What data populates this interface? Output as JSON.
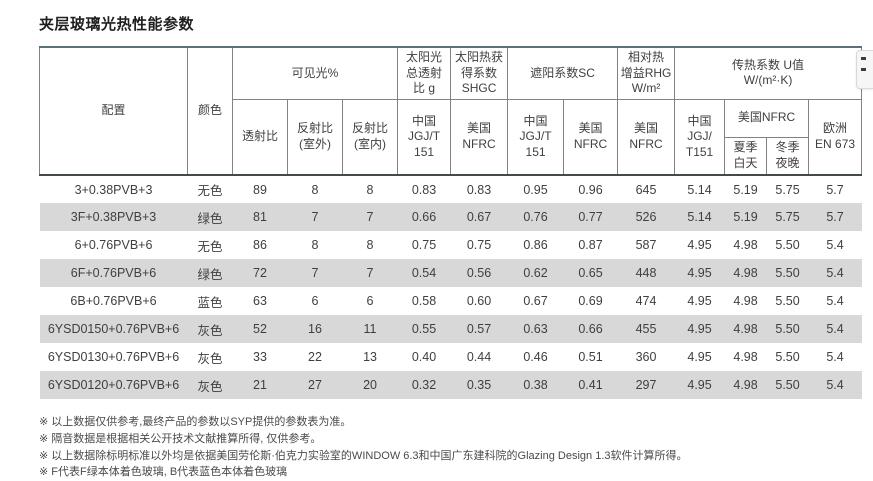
{
  "page": {
    "title": "夹层玻璃光热性能参数"
  },
  "table": {
    "header": {
      "config": "配置",
      "color": "颜色",
      "visible_light": "可见光%",
      "solar_g": "太阳光\n总透射\n比 g",
      "shgc": "太阳热获\n得系数\nSHGC",
      "sc": "遮阳系数SC",
      "rhg": "相对热\n增益RHG\nW/m²",
      "u_value": "传热系数 U值\nW/(m²·K)",
      "transmittance": "透射比",
      "reflect_out": "反射比\n(室外)",
      "reflect_in": "反射比\n(室内)",
      "cn_jgjt151_g": "中国\nJGJ/T\n151",
      "us_nfrc_shgc": "美国\nNFRC",
      "cn_jgjt151_sc": "中国\nJGJ/T\n151",
      "us_nfrc_sc": "美国\nNFRC",
      "us_nfrc_rhg": "美国\nNFRC",
      "cn_jgjt151_u": "中国\nJGJ/\nT151",
      "us_nfrc_u": "美国NFRC",
      "summer_day": "夏季\n白天",
      "winter_night": "冬季\n夜晚",
      "eu_en673": "欧洲\nEN 673"
    },
    "rows": [
      [
        "3+0.38PVB+3",
        "无色",
        "89",
        "8",
        "8",
        "0.83",
        "0.83",
        "0.95",
        "0.96",
        "645",
        "5.14",
        "5.19",
        "5.75",
        "5.7"
      ],
      [
        "3F+0.38PVB+3",
        "绿色",
        "81",
        "7",
        "7",
        "0.66",
        "0.67",
        "0.76",
        "0.77",
        "526",
        "5.14",
        "5.19",
        "5.75",
        "5.7"
      ],
      [
        "6+0.76PVB+6",
        "无色",
        "86",
        "8",
        "8",
        "0.75",
        "0.75",
        "0.86",
        "0.87",
        "587",
        "4.95",
        "4.98",
        "5.50",
        "5.4"
      ],
      [
        "6F+0.76PVB+6",
        "绿色",
        "72",
        "7",
        "7",
        "0.54",
        "0.56",
        "0.62",
        "0.65",
        "448",
        "4.95",
        "4.98",
        "5.50",
        "5.4"
      ],
      [
        "6B+0.76PVB+6",
        "蓝色",
        "63",
        "6",
        "6",
        "0.58",
        "0.60",
        "0.67",
        "0.69",
        "474",
        "4.95",
        "4.98",
        "5.50",
        "5.4"
      ],
      [
        "6YSD0150+0.76PVB+6",
        "灰色",
        "52",
        "16",
        "11",
        "0.55",
        "0.57",
        "0.63",
        "0.66",
        "455",
        "4.95",
        "4.98",
        "5.50",
        "5.4"
      ],
      [
        "6YSD0130+0.76PVB+6",
        "灰色",
        "33",
        "22",
        "13",
        "0.40",
        "0.44",
        "0.46",
        "0.51",
        "360",
        "4.95",
        "4.98",
        "5.50",
        "5.4"
      ],
      [
        "6YSD0120+0.76PVB+6",
        "灰色",
        "21",
        "27",
        "20",
        "0.32",
        "0.35",
        "0.38",
        "0.41",
        "297",
        "4.95",
        "4.98",
        "5.50",
        "5.4"
      ]
    ]
  },
  "footnotes": [
    "※ 以上数据仅供参考,最终产品的参数以SYP提供的参数表为准。",
    "※ 隔音数据是根据相关公开技术文献推算所得, 仅供参考。",
    "※ 以上数据除标明标准以外均是依据美国劳伦斯·伯克力实验室的WINDOW 6.3和中国广东建科院的Glazing Design 1.3软件计算所得。",
    "※ F代表F绿本体着色玻璃, B代表蓝色本体着色玻璃"
  ],
  "colors": {
    "table_top_border": "#5c7079",
    "header_grid_border": "#828282",
    "header_bottom_border": "#424a4e",
    "row_stripe": "#d8d8d8",
    "body_text": "#3f3f3f"
  }
}
